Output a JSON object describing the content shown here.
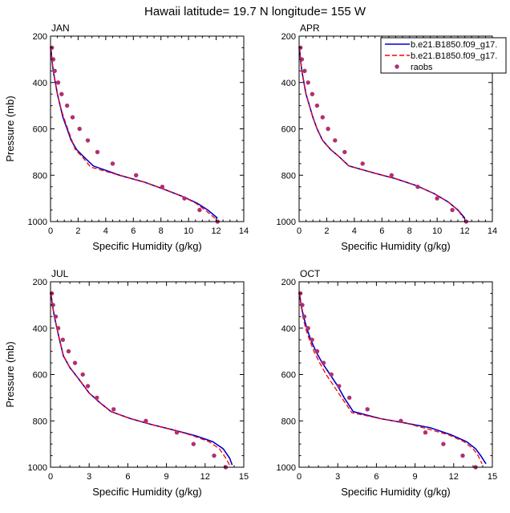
{
  "figure": {
    "title": "Hawaii  latitude= 19.7 N longitude= 155 W"
  },
  "legend": {
    "entries": [
      {
        "label": "b.e21.B1850.f09_g17.",
        "color": "#0000cc",
        "style": "solid"
      },
      {
        "label": "b.e21.B1850.f09_g17.",
        "color": "#ff0000",
        "style": "dashed"
      },
      {
        "label": "raobs",
        "color": "#b0306f",
        "style": "marker"
      }
    ]
  },
  "chart_data": [
    {
      "type": "line",
      "panel_label": "JAN",
      "xlabel": "Specific Humidity (g/kg)",
      "ylabel": "Pressure (mb)",
      "xlim": [
        0,
        14
      ],
      "ylim": [
        200,
        1000
      ],
      "y_reversed": true,
      "xticks": [
        0,
        2,
        4,
        6,
        8,
        10,
        12,
        14
      ],
      "yticks": [
        200,
        400,
        600,
        800,
        1000
      ],
      "series": [
        {
          "style": "solid",
          "color": "#0000cc",
          "points": [
            [
              0.03,
              250
            ],
            [
              0.1,
              300
            ],
            [
              0.2,
              350
            ],
            [
              0.35,
              400
            ],
            [
              0.5,
              450
            ],
            [
              0.7,
              500
            ],
            [
              0.9,
              550
            ],
            [
              1.2,
              600
            ],
            [
              1.5,
              650
            ],
            [
              1.9,
              690
            ],
            [
              2.4,
              720
            ],
            [
              3.1,
              760
            ],
            [
              5.0,
              800
            ],
            [
              6.8,
              830
            ],
            [
              8.2,
              860
            ],
            [
              9.5,
              890
            ],
            [
              10.6,
              920
            ],
            [
              11.4,
              950
            ],
            [
              12.1,
              985
            ]
          ]
        },
        {
          "style": "dashed",
          "color": "#ff0000",
          "points": [
            [
              0.03,
              250
            ],
            [
              0.1,
              300
            ],
            [
              0.2,
              350
            ],
            [
              0.35,
              400
            ],
            [
              0.5,
              450
            ],
            [
              0.7,
              500
            ],
            [
              0.95,
              550
            ],
            [
              1.25,
              600
            ],
            [
              1.55,
              650
            ],
            [
              1.8,
              690
            ],
            [
              2.3,
              720
            ],
            [
              2.9,
              765
            ],
            [
              5.0,
              800
            ],
            [
              6.8,
              830
            ],
            [
              8.2,
              860
            ],
            [
              9.5,
              890
            ],
            [
              10.5,
              920
            ],
            [
              11.2,
              950
            ],
            [
              11.9,
              985
            ]
          ]
        }
      ],
      "markers": [
        [
          0.1,
          250
        ],
        [
          0.2,
          300
        ],
        [
          0.3,
          350
        ],
        [
          0.55,
          400
        ],
        [
          0.8,
          450
        ],
        [
          1.2,
          500
        ],
        [
          1.6,
          550
        ],
        [
          2.1,
          600
        ],
        [
          2.7,
          650
        ],
        [
          3.4,
          700
        ],
        [
          4.5,
          750
        ],
        [
          6.2,
          800
        ],
        [
          8.1,
          850
        ],
        [
          9.7,
          900
        ],
        [
          10.8,
          950
        ],
        [
          12.1,
          1000
        ]
      ]
    },
    {
      "type": "line",
      "panel_label": "APR",
      "xlabel": "Specific Humidity (g/kg)",
      "ylabel": "",
      "xlim": [
        0,
        14
      ],
      "ylim": [
        200,
        1000
      ],
      "y_reversed": true,
      "xticks": [
        0,
        2,
        4,
        6,
        8,
        10,
        12,
        14
      ],
      "yticks": [
        200,
        400,
        600,
        800,
        1000
      ],
      "series": [
        {
          "style": "solid",
          "color": "#0000cc",
          "points": [
            [
              0.03,
              250
            ],
            [
              0.1,
              300
            ],
            [
              0.2,
              350
            ],
            [
              0.35,
              400
            ],
            [
              0.5,
              450
            ],
            [
              0.75,
              500
            ],
            [
              1.0,
              550
            ],
            [
              1.3,
              600
            ],
            [
              1.7,
              650
            ],
            [
              2.3,
              690
            ],
            [
              2.9,
              720
            ],
            [
              3.6,
              760
            ],
            [
              5.4,
              790
            ],
            [
              7.0,
              815
            ],
            [
              8.5,
              845
            ],
            [
              9.8,
              880
            ],
            [
              10.8,
              915
            ],
            [
              11.5,
              950
            ],
            [
              12.0,
              985
            ]
          ]
        },
        {
          "style": "dashed",
          "color": "#ff0000",
          "points": [
            [
              0.03,
              250
            ],
            [
              0.1,
              300
            ],
            [
              0.2,
              350
            ],
            [
              0.35,
              400
            ],
            [
              0.5,
              450
            ],
            [
              0.75,
              500
            ],
            [
              1.0,
              550
            ],
            [
              1.3,
              600
            ],
            [
              1.7,
              650
            ],
            [
              2.3,
              690
            ],
            [
              2.9,
              720
            ],
            [
              3.6,
              760
            ],
            [
              5.4,
              790
            ],
            [
              7.0,
              815
            ],
            [
              8.5,
              845
            ],
            [
              9.8,
              880
            ],
            [
              10.8,
              915
            ],
            [
              11.5,
              950
            ],
            [
              11.9,
              985
            ]
          ]
        }
      ],
      "markers": [
        [
          0.1,
          250
        ],
        [
          0.2,
          300
        ],
        [
          0.4,
          350
        ],
        [
          0.65,
          400
        ],
        [
          0.95,
          450
        ],
        [
          1.3,
          500
        ],
        [
          1.7,
          550
        ],
        [
          2.1,
          600
        ],
        [
          2.6,
          650
        ],
        [
          3.3,
          700
        ],
        [
          4.6,
          750
        ],
        [
          6.7,
          800
        ],
        [
          8.6,
          850
        ],
        [
          10.0,
          900
        ],
        [
          11.1,
          950
        ],
        [
          12.1,
          1000
        ]
      ]
    },
    {
      "type": "line",
      "panel_label": "JUL",
      "xlabel": "Specific Humidity (g/kg)",
      "ylabel": "Pressure (mb)",
      "xlim": [
        0,
        15
      ],
      "ylim": [
        200,
        1000
      ],
      "y_reversed": true,
      "xticks": [
        0,
        3,
        6,
        9,
        12,
        15
      ],
      "yticks": [
        200,
        400,
        600,
        800,
        1000
      ],
      "series": [
        {
          "style": "solid",
          "color": "#0000cc",
          "points": [
            [
              0.03,
              250
            ],
            [
              0.15,
              300
            ],
            [
              0.3,
              350
            ],
            [
              0.5,
              400
            ],
            [
              0.7,
              450
            ],
            [
              1.0,
              520
            ],
            [
              1.5,
              570
            ],
            [
              2.2,
              620
            ],
            [
              3.0,
              680
            ],
            [
              3.8,
              720
            ],
            [
              4.7,
              760
            ],
            [
              6.2,
              790
            ],
            [
              7.8,
              815
            ],
            [
              9.6,
              840
            ],
            [
              11.3,
              865
            ],
            [
              12.6,
              890
            ],
            [
              13.4,
              920
            ],
            [
              13.9,
              960
            ],
            [
              14.1,
              990
            ]
          ]
        },
        {
          "style": "dashed",
          "color": "#ff0000",
          "points": [
            [
              0.03,
              250
            ],
            [
              0.15,
              300
            ],
            [
              0.3,
              350
            ],
            [
              0.5,
              400
            ],
            [
              0.7,
              450
            ],
            [
              1.0,
              520
            ],
            [
              1.5,
              570
            ],
            [
              2.2,
              620
            ],
            [
              3.0,
              680
            ],
            [
              3.8,
              720
            ],
            [
              4.7,
              760
            ],
            [
              6.2,
              790
            ],
            [
              7.8,
              815
            ],
            [
              9.6,
              840
            ],
            [
              11.1,
              865
            ],
            [
              12.3,
              890
            ],
            [
              13.1,
              920
            ],
            [
              13.6,
              960
            ],
            [
              13.9,
              990
            ]
          ]
        }
      ],
      "markers": [
        [
          0.1,
          250
        ],
        [
          0.2,
          300
        ],
        [
          0.4,
          350
        ],
        [
          0.6,
          400
        ],
        [
          0.95,
          450
        ],
        [
          1.4,
          500
        ],
        [
          1.9,
          550
        ],
        [
          2.5,
          600
        ],
        [
          2.9,
          650
        ],
        [
          3.6,
          700
        ],
        [
          4.9,
          750
        ],
        [
          7.4,
          800
        ],
        [
          9.8,
          850
        ],
        [
          11.1,
          900
        ],
        [
          12.7,
          950
        ],
        [
          13.6,
          1000
        ]
      ]
    },
    {
      "type": "line",
      "panel_label": "OCT",
      "xlabel": "Specific Humidity (g/kg)",
      "ylabel": "",
      "xlim": [
        0,
        15
      ],
      "ylim": [
        200,
        1000
      ],
      "y_reversed": true,
      "xticks": [
        0,
        3,
        6,
        9,
        12,
        15
      ],
      "yticks": [
        200,
        400,
        600,
        800,
        1000
      ],
      "series": [
        {
          "style": "solid",
          "color": "#0000cc",
          "points": [
            [
              0.03,
              250
            ],
            [
              0.15,
              300
            ],
            [
              0.35,
              350
            ],
            [
              0.6,
              400
            ],
            [
              0.9,
              450
            ],
            [
              1.3,
              500
            ],
            [
              1.8,
              550
            ],
            [
              2.4,
              600
            ],
            [
              3.0,
              650
            ],
            [
              3.5,
              700
            ],
            [
              4.2,
              760
            ],
            [
              6.3,
              790
            ],
            [
              8.3,
              810
            ],
            [
              10.2,
              830
            ],
            [
              11.8,
              860
            ],
            [
              13.0,
              890
            ],
            [
              13.7,
              920
            ],
            [
              14.1,
              950
            ],
            [
              14.5,
              985
            ]
          ]
        },
        {
          "style": "dashed",
          "color": "#ff0000",
          "points": [
            [
              0.03,
              250
            ],
            [
              0.15,
              300
            ],
            [
              0.3,
              350
            ],
            [
              0.5,
              400
            ],
            [
              0.8,
              450
            ],
            [
              1.15,
              500
            ],
            [
              1.6,
              550
            ],
            [
              2.1,
              600
            ],
            [
              2.7,
              650
            ],
            [
              3.3,
              700
            ],
            [
              4.1,
              765
            ],
            [
              6.3,
              790
            ],
            [
              8.3,
              810
            ],
            [
              10.0,
              835
            ],
            [
              11.6,
              860
            ],
            [
              12.8,
              890
            ],
            [
              13.5,
              920
            ],
            [
              13.9,
              950
            ],
            [
              14.2,
              985
            ]
          ]
        }
      ],
      "markers": [
        [
          0.1,
          250
        ],
        [
          0.25,
          300
        ],
        [
          0.4,
          350
        ],
        [
          0.7,
          400
        ],
        [
          1.0,
          450
        ],
        [
          1.4,
          500
        ],
        [
          1.9,
          550
        ],
        [
          2.5,
          600
        ],
        [
          3.1,
          650
        ],
        [
          3.9,
          700
        ],
        [
          5.3,
          750
        ],
        [
          7.9,
          800
        ],
        [
          9.8,
          850
        ],
        [
          11.2,
          900
        ],
        [
          12.7,
          950
        ],
        [
          13.7,
          1000
        ]
      ]
    }
  ]
}
